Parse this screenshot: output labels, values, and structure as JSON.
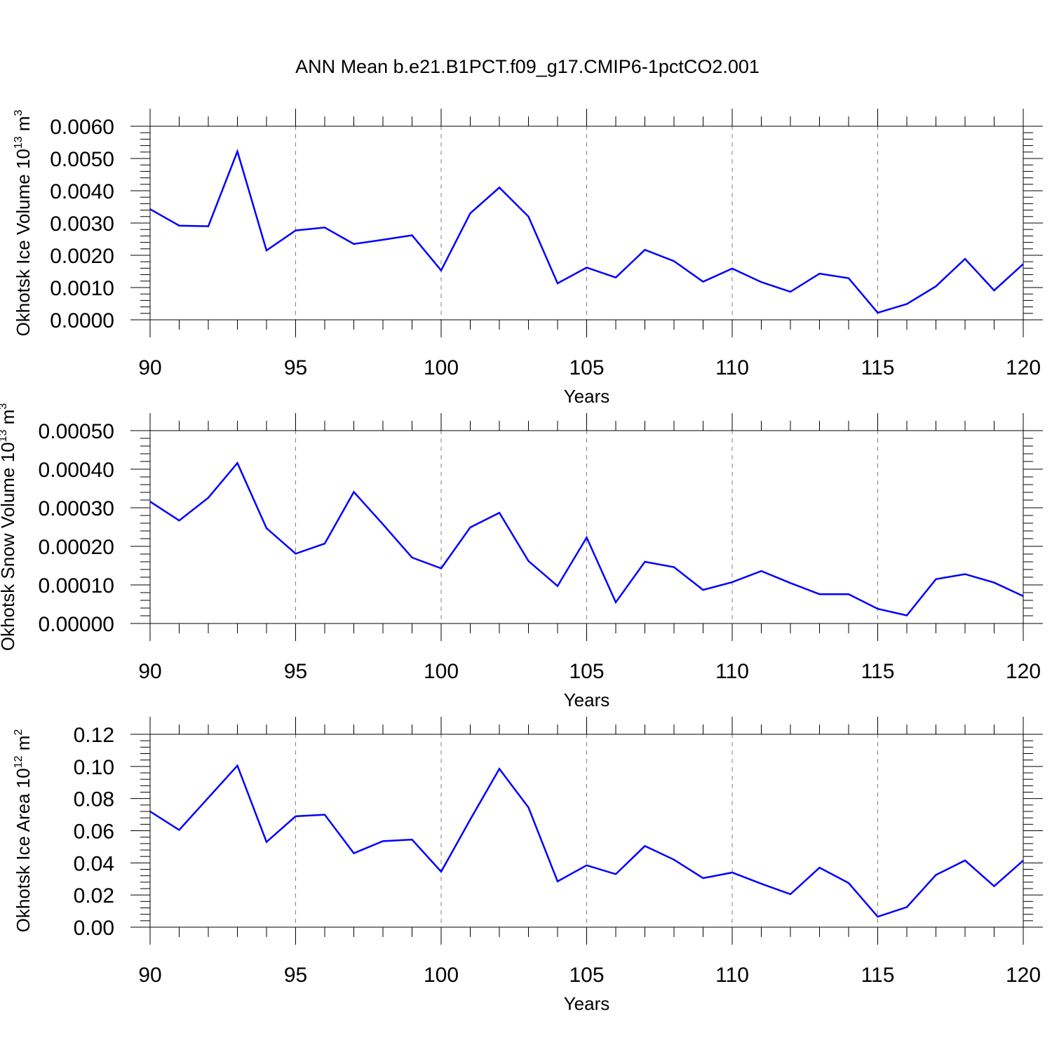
{
  "title": "ANN Mean b.e21.B1PCT.f09_g17.CMIP6-1pctCO2.001",
  "colors": {
    "line": "#0000ff",
    "axis": "#000000",
    "grid": "#808080",
    "background": "#ffffff"
  },
  "chart_data": [
    {
      "type": "line",
      "ylabel": {
        "text": "Okhotsk Ice Volume 10",
        "sup": "13",
        "unit": " m",
        "unit_sup": "3"
      },
      "xlabel": "Years",
      "xlim": [
        90,
        120
      ],
      "ylim": [
        0,
        0.006
      ],
      "x_ticks": [
        90,
        95,
        100,
        105,
        110,
        115,
        120
      ],
      "y_ticks": [
        "0.0000",
        "0.0010",
        "0.0020",
        "0.0030",
        "0.0040",
        "0.0050",
        "0.0060"
      ],
      "grid": "dashed vertical at major x ticks",
      "x": [
        90,
        91,
        92,
        93,
        94,
        95,
        96,
        97,
        98,
        99,
        100,
        101,
        102,
        103,
        104,
        105,
        106,
        107,
        108,
        109,
        110,
        111,
        112,
        113,
        114,
        115,
        116,
        117,
        118,
        119,
        120
      ],
      "series": [
        {
          "values": [
            0.00343,
            0.00292,
            0.0029,
            0.00522,
            0.00215,
            0.00277,
            0.00286,
            0.00235,
            0.00248,
            0.00262,
            0.00153,
            0.0033,
            0.0041,
            0.0032,
            0.00113,
            0.00162,
            0.00131,
            0.00217,
            0.00182,
            0.00118,
            0.00159,
            0.00117,
            0.00087,
            0.00143,
            0.00129,
            0.00022,
            0.00049,
            0.00104,
            0.00189,
            0.00091,
            0.00173
          ]
        }
      ]
    },
    {
      "type": "line",
      "ylabel": {
        "text": "Okhotsk Snow Volume 10",
        "sup": "13",
        "unit": " m",
        "unit_sup": "3"
      },
      "xlabel": "Years",
      "xlim": [
        90,
        120
      ],
      "ylim": [
        0,
        0.0005
      ],
      "x_ticks": [
        90,
        95,
        100,
        105,
        110,
        115,
        120
      ],
      "y_ticks": [
        "0.00000",
        "0.00010",
        "0.00020",
        "0.00030",
        "0.00040",
        "0.00050"
      ],
      "grid": "dashed vertical at major x ticks",
      "x": [
        90,
        91,
        92,
        93,
        94,
        95,
        96,
        97,
        98,
        99,
        100,
        101,
        102,
        103,
        104,
        105,
        106,
        107,
        108,
        109,
        110,
        111,
        112,
        113,
        114,
        115,
        116,
        117,
        118,
        119,
        120
      ],
      "series": [
        {
          "values": [
            0.000316,
            0.000267,
            0.000326,
            0.000416,
            0.000247,
            0.000181,
            0.000207,
            0.000341,
            0.000257,
            0.000171,
            0.000143,
            0.000249,
            0.000287,
            0.000162,
            9.7e-05,
            0.000223,
            5.5e-05,
            0.00016,
            0.000146,
            8.7e-05,
            0.000107,
            0.000136,
            0.000105,
            7.6e-05,
            7.6e-05,
            3.8e-05,
            2.1e-05,
            0.000115,
            0.000128,
            0.000106,
            7.1e-05
          ]
        }
      ]
    },
    {
      "type": "line",
      "ylabel": {
        "text": "Okhotsk Ice Area 10",
        "sup": "12",
        "unit": " m",
        "unit_sup": "2"
      },
      "xlabel": "Years",
      "xlim": [
        90,
        120
      ],
      "ylim": [
        0,
        0.12
      ],
      "x_ticks": [
        90,
        95,
        100,
        105,
        110,
        115,
        120
      ],
      "y_ticks": [
        "0.00",
        "0.02",
        "0.04",
        "0.06",
        "0.08",
        "0.10",
        "0.12"
      ],
      "grid": "dashed vertical at major x ticks",
      "x": [
        90,
        91,
        92,
        93,
        94,
        95,
        96,
        97,
        98,
        99,
        100,
        101,
        102,
        103,
        104,
        105,
        106,
        107,
        108,
        109,
        110,
        111,
        112,
        113,
        114,
        115,
        116,
        117,
        118,
        119,
        120
      ],
      "series": [
        {
          "values": [
            0.072,
            0.0605,
            0.0805,
            0.1005,
            0.053,
            0.069,
            0.07,
            0.046,
            0.0535,
            0.0545,
            0.0345,
            0.067,
            0.0985,
            0.0745,
            0.0285,
            0.0385,
            0.033,
            0.0505,
            0.042,
            0.0305,
            0.034,
            0.027,
            0.0205,
            0.037,
            0.0275,
            0.0065,
            0.0125,
            0.0325,
            0.0415,
            0.0255,
            0.0415
          ]
        }
      ]
    }
  ]
}
